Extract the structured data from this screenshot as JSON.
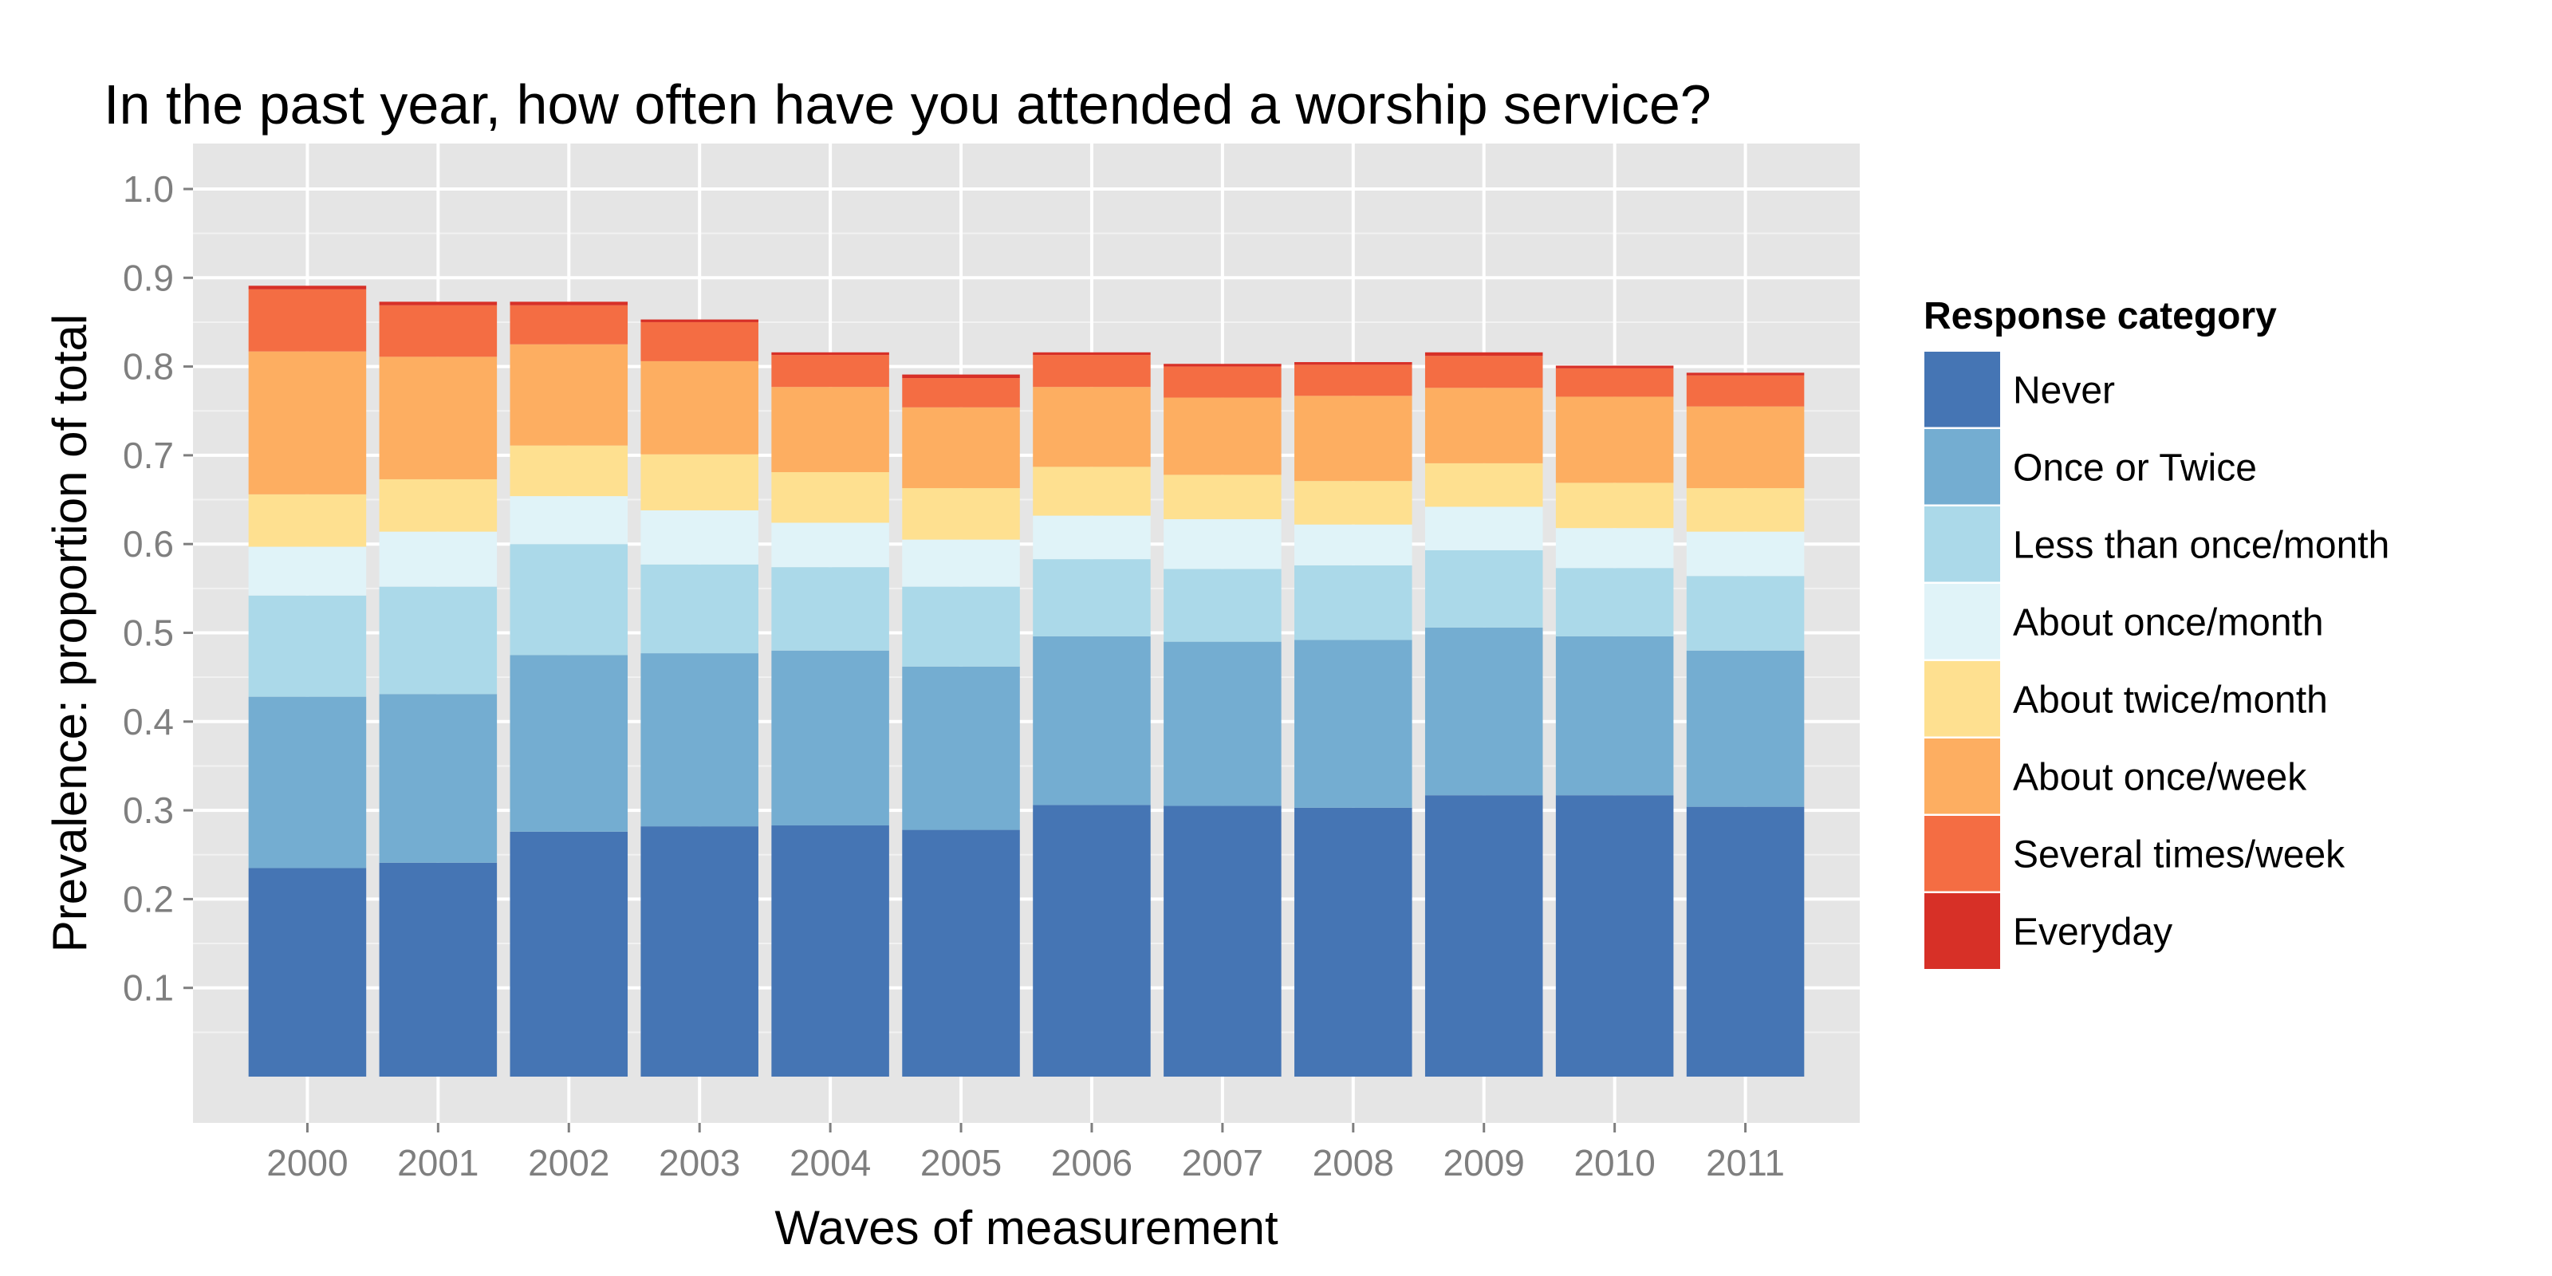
{
  "chart_data": {
    "type": "bar",
    "stacked": true,
    "title": "In the past year, how often have you attended a worship service?",
    "xlabel": "Waves of measurement",
    "ylabel": "Prevalence: proportion of total",
    "ylim": [
      0,
      1.0
    ],
    "yticks": [
      "0.1",
      "0.2",
      "0.3",
      "0.4",
      "0.5",
      "0.6",
      "0.7",
      "0.8",
      "0.9",
      "1.0"
    ],
    "grid": true,
    "legend": {
      "title": "Response category",
      "position": "right"
    },
    "categories": [
      "2000",
      "2001",
      "2002",
      "2003",
      "2004",
      "2005",
      "2006",
      "2007",
      "2008",
      "2009",
      "2010",
      "2011"
    ],
    "series": [
      {
        "name": "Never",
        "color": "#4575b4",
        "values": [
          0.235,
          0.241,
          0.276,
          0.282,
          0.283,
          0.278,
          0.306,
          0.305,
          0.303,
          0.317,
          0.317,
          0.304
        ]
      },
      {
        "name": "Once or Twice",
        "color": "#74add1",
        "values": [
          0.193,
          0.19,
          0.199,
          0.195,
          0.197,
          0.184,
          0.19,
          0.185,
          0.189,
          0.189,
          0.179,
          0.176
        ]
      },
      {
        "name": "Less than once/month",
        "color": "#abd9e9",
        "values": [
          0.114,
          0.121,
          0.125,
          0.1,
          0.094,
          0.09,
          0.087,
          0.082,
          0.084,
          0.087,
          0.077,
          0.084
        ]
      },
      {
        "name": "About once/month",
        "color": "#e0f3f8",
        "values": [
          0.055,
          0.062,
          0.054,
          0.061,
          0.05,
          0.053,
          0.049,
          0.056,
          0.046,
          0.049,
          0.045,
          0.05
        ]
      },
      {
        "name": "About twice/month",
        "color": "#fee090",
        "values": [
          0.059,
          0.059,
          0.057,
          0.063,
          0.057,
          0.058,
          0.055,
          0.05,
          0.049,
          0.049,
          0.051,
          0.049
        ]
      },
      {
        "name": "About once/week",
        "color": "#fdae61",
        "values": [
          0.161,
          0.138,
          0.114,
          0.105,
          0.096,
          0.091,
          0.09,
          0.087,
          0.096,
          0.085,
          0.097,
          0.092
        ]
      },
      {
        "name": "Several times/week",
        "color": "#f46d43",
        "values": [
          0.07,
          0.058,
          0.044,
          0.044,
          0.036,
          0.033,
          0.036,
          0.035,
          0.035,
          0.036,
          0.032,
          0.035
        ]
      },
      {
        "name": "Everyday",
        "color": "#d73027",
        "values": [
          0.004,
          0.004,
          0.004,
          0.003,
          0.003,
          0.004,
          0.003,
          0.003,
          0.003,
          0.004,
          0.003,
          0.003
        ]
      }
    ]
  }
}
